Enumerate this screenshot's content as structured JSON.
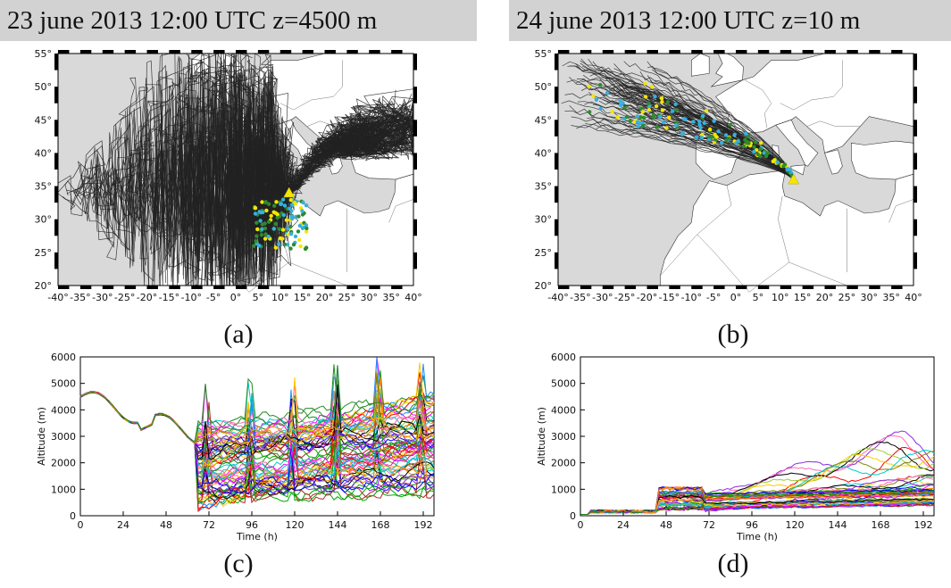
{
  "chart_data": [
    {
      "type": "map",
      "panel": "a",
      "title": "23 june 2013 12:00 UTC z=4500 m",
      "caption": "(a)",
      "xticks": [
        "-40°",
        "-35°",
        "-30°",
        "-25°",
        "-20°",
        "-15°",
        "-10°",
        "-5°",
        "0°",
        "5°",
        "10°",
        "15°",
        "20°",
        "25°",
        "30°",
        "35°",
        "40°"
      ],
      "yticks": [
        "20°",
        "25°",
        "30°",
        "35°",
        "40°",
        "45°",
        "50°",
        "55°"
      ],
      "xlim": [
        -40,
        40
      ],
      "ylim": [
        20,
        55
      ],
      "release_point": {
        "lon": 12,
        "lat": 34
      },
      "trajectory_color": "#222222",
      "marker_colors": [
        "#f5e600",
        "#2e8b2e",
        "#35b0e0"
      ]
    },
    {
      "type": "map",
      "panel": "b",
      "title": "24 june 2013 12:00 UTC z=10 m",
      "caption": "(b)",
      "xticks": [
        "-40°",
        "-35°",
        "-30°",
        "-25°",
        "-20°",
        "-15°",
        "-10°",
        "-5°",
        "0°",
        "5°",
        "10°",
        "15°",
        "20°",
        "25°",
        "30°",
        "35°",
        "40°"
      ],
      "yticks": [
        "20°",
        "25°",
        "30°",
        "35°",
        "40°",
        "45°",
        "50°",
        "55°"
      ],
      "xlim": [
        -40,
        40
      ],
      "ylim": [
        20,
        55
      ],
      "release_point": {
        "lon": 13,
        "lat": 36
      },
      "trajectory_color": "#222222",
      "marker_colors": [
        "#f5e600",
        "#2e8b2e",
        "#35b0e0"
      ]
    },
    {
      "type": "line",
      "panel": "c",
      "caption": "(c)",
      "xlabel": "Time (h)",
      "ylabel": "Altitude (m)",
      "xticks": [
        "0",
        "24",
        "48",
        "72",
        "96",
        "120",
        "144",
        "168",
        "192"
      ],
      "yticks": [
        "0",
        "1000",
        "2000",
        "3000",
        "4000",
        "5000",
        "6000"
      ],
      "xlim": [
        0,
        198
      ],
      "ylim": [
        0,
        6000
      ],
      "start_altitude": 4500
    },
    {
      "type": "line",
      "panel": "d",
      "caption": "(d)",
      "xlabel": "Time (h)",
      "ylabel": "Altitude (m)",
      "xticks": [
        "0",
        "24",
        "48",
        "72",
        "96",
        "120",
        "144",
        "168",
        "192"
      ],
      "yticks": [
        "0",
        "1000",
        "2000",
        "3000",
        "4000",
        "5000",
        "6000"
      ],
      "xlim": [
        0,
        198
      ],
      "ylim": [
        0,
        6000
      ],
      "start_altitude": 10
    }
  ]
}
